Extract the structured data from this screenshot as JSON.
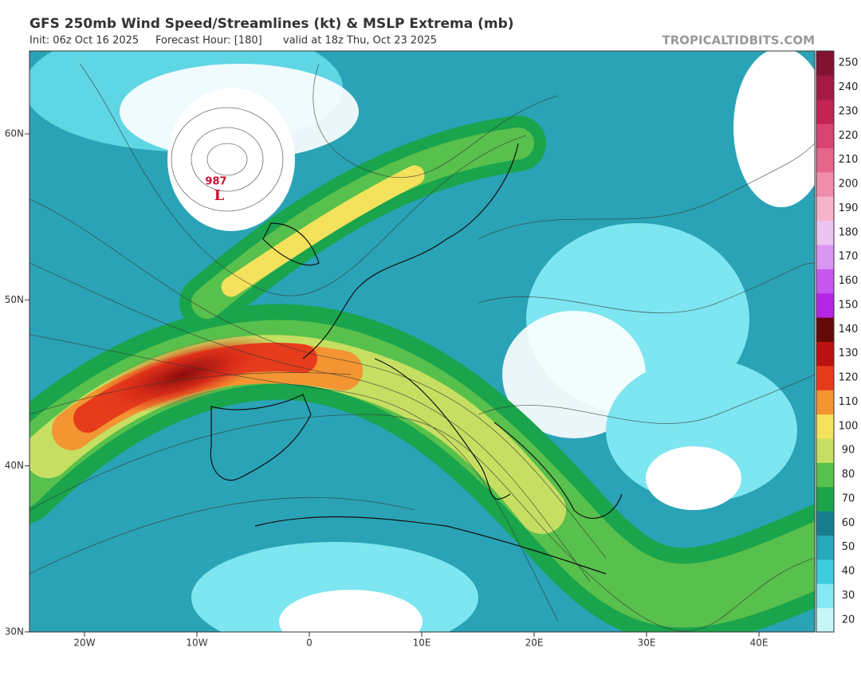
{
  "header": {
    "title": "GFS 250mb Wind Speed/Streamlines (kt) & MSLP Extrema (mb)",
    "init": "Init: 06z Oct 16 2025",
    "forecast_hour": "Forecast Hour: [180]",
    "valid": "valid at 18z Thu, Oct 23 2025",
    "source": "TROPICALTIDBITS.COM"
  },
  "map": {
    "latitude_labels": [
      "60N",
      "50N",
      "40N",
      "30N"
    ],
    "longitude_labels": [
      "20W",
      "10W",
      "0",
      "10E",
      "20E",
      "30E",
      "40E"
    ],
    "low": {
      "pressure": "987",
      "symbol": "L"
    }
  },
  "colorbar": {
    "ticks": [
      20,
      30,
      40,
      50,
      60,
      70,
      80,
      90,
      100,
      110,
      120,
      130,
      140,
      150,
      160,
      170,
      180,
      190,
      200,
      210,
      220,
      230,
      240,
      250
    ],
    "colors": [
      "#c8f6f8",
      "#86e8f0",
      "#3ecbdc",
      "#28a8ba",
      "#177c8e",
      "#1aa44c",
      "#58c04c",
      "#c6df62",
      "#f4e15c",
      "#f29532",
      "#e63c1c",
      "#b81212",
      "#640808",
      "#b426e4",
      "#c658f0",
      "#d996f2",
      "#ebc4f2",
      "#f6b4cb",
      "#f08dab",
      "#e7648b",
      "#d84474",
      "#c22454",
      "#a31944",
      "#821232"
    ]
  }
}
